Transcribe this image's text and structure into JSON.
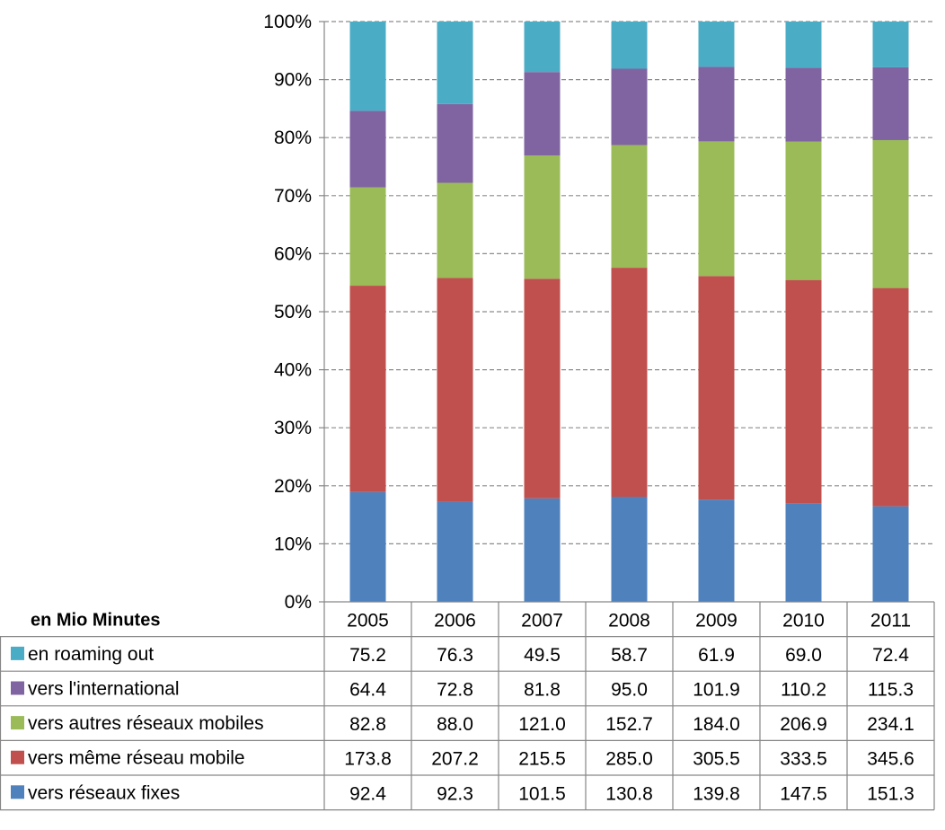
{
  "chart_data": {
    "type": "bar",
    "stacking": "percent",
    "table_header": "en Mio Minutes",
    "categories": [
      "2005",
      "2006",
      "2007",
      "2008",
      "2009",
      "2010",
      "2011"
    ],
    "y_ticks": [
      "0%",
      "10%",
      "20%",
      "30%",
      "40%",
      "50%",
      "60%",
      "70%",
      "80%",
      "90%",
      "100%"
    ],
    "ylim": [
      0,
      100
    ],
    "grid": true,
    "legend": "left",
    "series": [
      {
        "name": "vers réseaux fixes",
        "color": "#4F81BD",
        "values": [
          92.4,
          92.3,
          101.5,
          130.8,
          139.8,
          147.5,
          151.3
        ],
        "labels": [
          "92.4",
          "92.3",
          "101.5",
          "130.8",
          "139.8",
          "147.5",
          "151.3"
        ]
      },
      {
        "name": "vers même réseau mobile",
        "color": "#C0504D",
        "values": [
          173.8,
          207.2,
          215.5,
          285.0,
          305.5,
          333.5,
          345.6
        ],
        "labels": [
          "173.8",
          "207.2",
          "215.5",
          "285.0",
          "305.5",
          "333.5",
          "345.6"
        ]
      },
      {
        "name": "vers autres réseaux mobiles",
        "color": "#9BBB59",
        "values": [
          82.8,
          88.0,
          121.0,
          152.7,
          184.0,
          206.9,
          234.1
        ],
        "labels": [
          "82.8",
          "88.0",
          "121.0",
          "152.7",
          "184.0",
          "206.9",
          "234.1"
        ]
      },
      {
        "name": "vers l'international",
        "color": "#8064A2",
        "values": [
          64.4,
          72.8,
          81.8,
          95.0,
          101.9,
          110.2,
          115.3
        ],
        "labels": [
          "64.4",
          "72.8",
          "81.8",
          "95.0",
          "101.9",
          "110.2",
          "115.3"
        ]
      },
      {
        "name": "en roaming out",
        "color": "#4BACC6",
        "values": [
          75.2,
          76.3,
          49.5,
          58.7,
          61.9,
          69.0,
          72.4
        ],
        "labels": [
          "75.2",
          "76.3",
          "49.5",
          "58.7",
          "61.9",
          "69.0",
          "72.4"
        ]
      }
    ]
  }
}
